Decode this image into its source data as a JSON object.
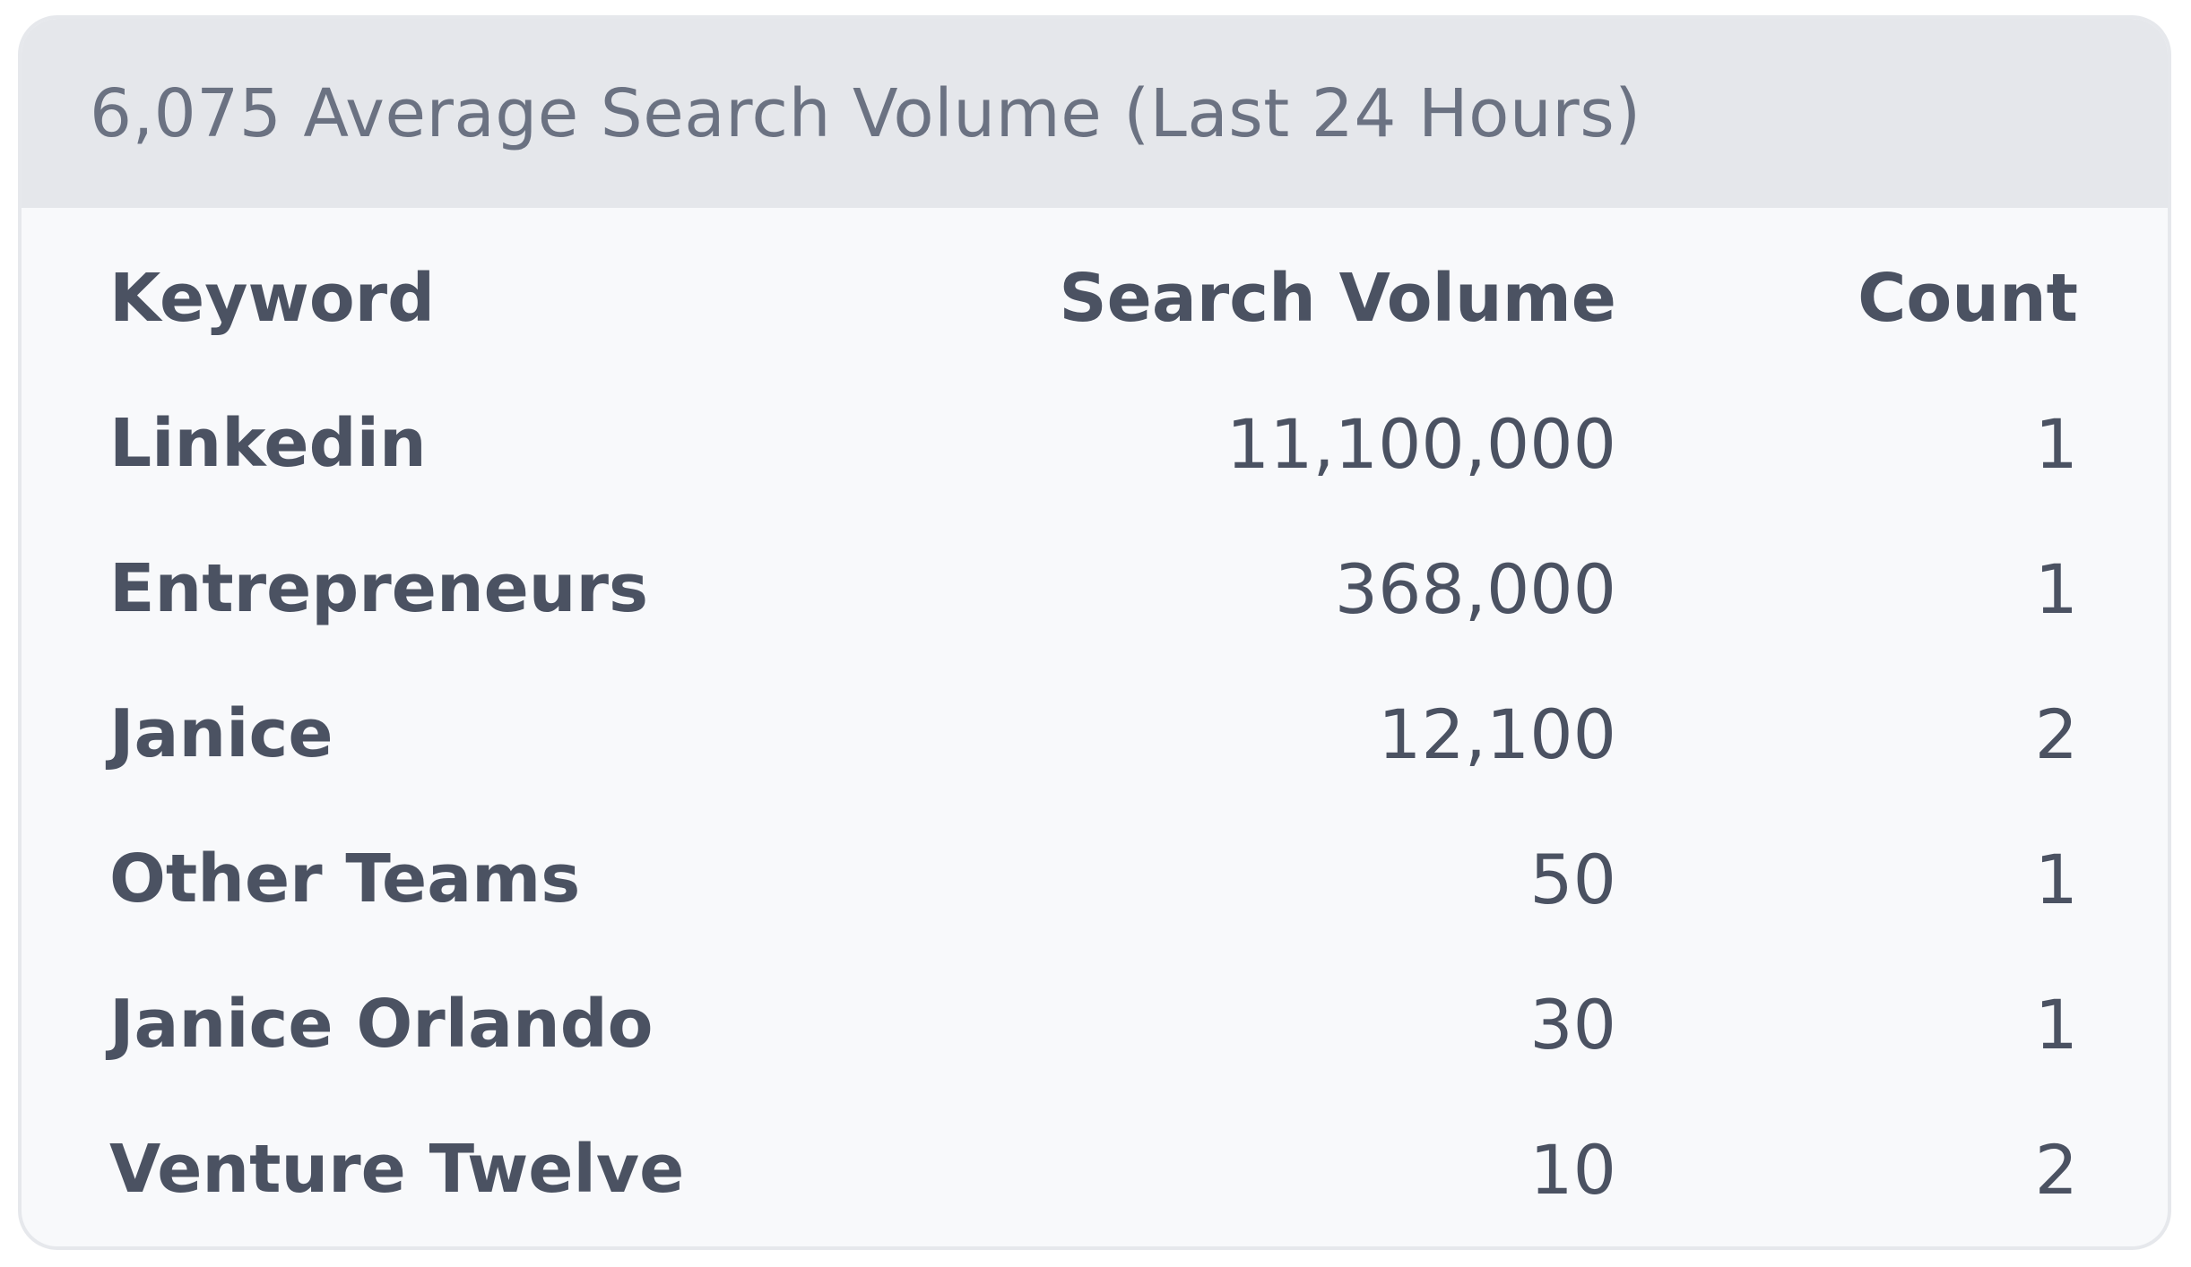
{
  "header": {
    "title": "6,075 Average Search Volume (Last 24 Hours)"
  },
  "table": {
    "columns": {
      "keyword": "Keyword",
      "volume": "Search Volume",
      "count": "Count"
    },
    "rows": [
      {
        "keyword": "Linkedin",
        "volume": "11,100,000",
        "count": "1"
      },
      {
        "keyword": "Entrepreneurs",
        "volume": "368,000",
        "count": "1"
      },
      {
        "keyword": "Janice",
        "volume": "12,100",
        "count": "2"
      },
      {
        "keyword": "Other Teams",
        "volume": "50",
        "count": "1"
      },
      {
        "keyword": "Janice Orlando",
        "volume": "30",
        "count": "1"
      },
      {
        "keyword": "Venture Twelve",
        "volume": "10",
        "count": "2"
      }
    ]
  },
  "colors": {
    "header_bg": "#e5e7eb",
    "body_bg": "#f8f9fb",
    "title_text": "#6b7282",
    "table_text": "#4b5262"
  }
}
